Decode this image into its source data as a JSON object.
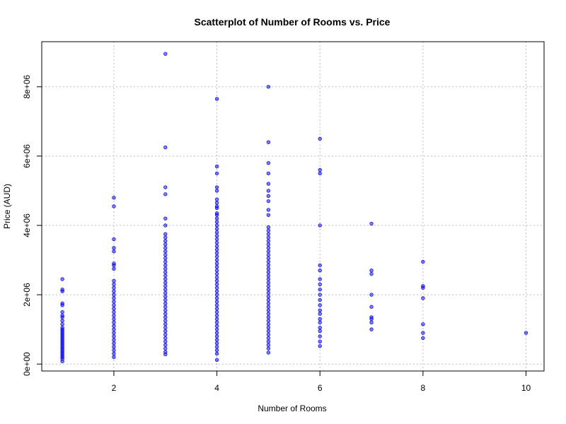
{
  "chart_data": {
    "type": "scatter",
    "title": "Scatterplot of Number of Rooms vs. Price",
    "xlabel": "Number of Rooms",
    "ylabel": "Price (AUD)",
    "xlim": [
      0.6,
      10.35
    ],
    "ylim": [
      -200000,
      9300000
    ],
    "x_ticks": [
      2,
      4,
      6,
      8,
      10
    ],
    "x_tick_labels": [
      "2",
      "4",
      "6",
      "8",
      "10"
    ],
    "y_ticks": [
      0,
      2000000,
      4000000,
      6000000,
      8000000
    ],
    "y_tick_labels": [
      "0e+00",
      "2e+06",
      "4e+06",
      "6e+06",
      "8e+06"
    ],
    "grid": true,
    "point_color": "#0000ff",
    "points": [
      [
        1,
        80000
      ],
      [
        1,
        150000
      ],
      [
        1,
        200000
      ],
      [
        1,
        250000
      ],
      [
        1,
        300000
      ],
      [
        1,
        350000
      ],
      [
        1,
        400000
      ],
      [
        1,
        450000
      ],
      [
        1,
        500000
      ],
      [
        1,
        550000
      ],
      [
        1,
        600000
      ],
      [
        1,
        650000
      ],
      [
        1,
        700000
      ],
      [
        1,
        750000
      ],
      [
        1,
        800000
      ],
      [
        1,
        850000
      ],
      [
        1,
        900000
      ],
      [
        1,
        950000
      ],
      [
        1,
        1000000
      ],
      [
        1,
        1050000
      ],
      [
        1,
        1150000
      ],
      [
        1,
        1250000
      ],
      [
        1,
        1350000
      ],
      [
        1,
        1400000
      ],
      [
        1,
        1500000
      ],
      [
        1,
        1700000
      ],
      [
        1,
        1750000
      ],
      [
        1,
        2100000
      ],
      [
        1,
        2150000
      ],
      [
        1,
        2450000
      ],
      [
        2,
        200000
      ],
      [
        2,
        300000
      ],
      [
        2,
        400000
      ],
      [
        2,
        500000
      ],
      [
        2,
        600000
      ],
      [
        2,
        700000
      ],
      [
        2,
        800000
      ],
      [
        2,
        900000
      ],
      [
        2,
        1000000
      ],
      [
        2,
        1100000
      ],
      [
        2,
        1200000
      ],
      [
        2,
        1300000
      ],
      [
        2,
        1400000
      ],
      [
        2,
        1500000
      ],
      [
        2,
        1600000
      ],
      [
        2,
        1700000
      ],
      [
        2,
        1800000
      ],
      [
        2,
        1900000
      ],
      [
        2,
        2000000
      ],
      [
        2,
        2100000
      ],
      [
        2,
        2200000
      ],
      [
        2,
        2300000
      ],
      [
        2,
        2400000
      ],
      [
        2,
        2750000
      ],
      [
        2,
        2850000
      ],
      [
        2,
        2900000
      ],
      [
        2,
        3250000
      ],
      [
        2,
        3350000
      ],
      [
        2,
        3600000
      ],
      [
        2,
        4550000
      ],
      [
        2,
        4800000
      ],
      [
        3,
        280000
      ],
      [
        3,
        350000
      ],
      [
        3,
        450000
      ],
      [
        3,
        550000
      ],
      [
        3,
        650000
      ],
      [
        3,
        750000
      ],
      [
        3,
        850000
      ],
      [
        3,
        950000
      ],
      [
        3,
        1050000
      ],
      [
        3,
        1150000
      ],
      [
        3,
        1250000
      ],
      [
        3,
        1350000
      ],
      [
        3,
        1450000
      ],
      [
        3,
        1550000
      ],
      [
        3,
        1650000
      ],
      [
        3,
        1750000
      ],
      [
        3,
        1850000
      ],
      [
        3,
        1950000
      ],
      [
        3,
        2050000
      ],
      [
        3,
        2150000
      ],
      [
        3,
        2250000
      ],
      [
        3,
        2350000
      ],
      [
        3,
        2450000
      ],
      [
        3,
        2550000
      ],
      [
        3,
        2650000
      ],
      [
        3,
        2750000
      ],
      [
        3,
        2850000
      ],
      [
        3,
        2950000
      ],
      [
        3,
        3050000
      ],
      [
        3,
        3150000
      ],
      [
        3,
        3250000
      ],
      [
        3,
        3350000
      ],
      [
        3,
        3450000
      ],
      [
        3,
        3550000
      ],
      [
        3,
        3650000
      ],
      [
        3,
        3750000
      ],
      [
        3,
        4000000
      ],
      [
        3,
        4200000
      ],
      [
        3,
        4900000
      ],
      [
        3,
        5100000
      ],
      [
        3,
        6250000
      ],
      [
        3,
        8950000
      ],
      [
        4,
        120000
      ],
      [
        4,
        300000
      ],
      [
        4,
        400000
      ],
      [
        4,
        500000
      ],
      [
        4,
        600000
      ],
      [
        4,
        700000
      ],
      [
        4,
        800000
      ],
      [
        4,
        900000
      ],
      [
        4,
        1000000
      ],
      [
        4,
        1100000
      ],
      [
        4,
        1200000
      ],
      [
        4,
        1300000
      ],
      [
        4,
        1400000
      ],
      [
        4,
        1500000
      ],
      [
        4,
        1600000
      ],
      [
        4,
        1700000
      ],
      [
        4,
        1800000
      ],
      [
        4,
        1900000
      ],
      [
        4,
        2000000
      ],
      [
        4,
        2100000
      ],
      [
        4,
        2200000
      ],
      [
        4,
        2300000
      ],
      [
        4,
        2400000
      ],
      [
        4,
        2500000
      ],
      [
        4,
        2600000
      ],
      [
        4,
        2700000
      ],
      [
        4,
        2800000
      ],
      [
        4,
        2900000
      ],
      [
        4,
        3000000
      ],
      [
        4,
        3100000
      ],
      [
        4,
        3200000
      ],
      [
        4,
        3300000
      ],
      [
        4,
        3400000
      ],
      [
        4,
        3500000
      ],
      [
        4,
        3600000
      ],
      [
        4,
        3700000
      ],
      [
        4,
        3800000
      ],
      [
        4,
        3900000
      ],
      [
        4,
        4000000
      ],
      [
        4,
        4100000
      ],
      [
        4,
        4200000
      ],
      [
        4,
        4300000
      ],
      [
        4,
        4350000
      ],
      [
        4,
        4500000
      ],
      [
        4,
        4550000
      ],
      [
        4,
        4650000
      ],
      [
        4,
        4750000
      ],
      [
        4,
        5000000
      ],
      [
        4,
        5100000
      ],
      [
        4,
        5500000
      ],
      [
        4,
        5700000
      ],
      [
        4,
        7650000
      ],
      [
        5,
        330000
      ],
      [
        5,
        450000
      ],
      [
        5,
        550000
      ],
      [
        5,
        650000
      ],
      [
        5,
        750000
      ],
      [
        5,
        850000
      ],
      [
        5,
        950000
      ],
      [
        5,
        1050000
      ],
      [
        5,
        1150000
      ],
      [
        5,
        1250000
      ],
      [
        5,
        1350000
      ],
      [
        5,
        1450000
      ],
      [
        5,
        1550000
      ],
      [
        5,
        1650000
      ],
      [
        5,
        1750000
      ],
      [
        5,
        1850000
      ],
      [
        5,
        1950000
      ],
      [
        5,
        2050000
      ],
      [
        5,
        2150000
      ],
      [
        5,
        2250000
      ],
      [
        5,
        2350000
      ],
      [
        5,
        2450000
      ],
      [
        5,
        2550000
      ],
      [
        5,
        2650000
      ],
      [
        5,
        2750000
      ],
      [
        5,
        2850000
      ],
      [
        5,
        2950000
      ],
      [
        5,
        3050000
      ],
      [
        5,
        3150000
      ],
      [
        5,
        3250000
      ],
      [
        5,
        3350000
      ],
      [
        5,
        3450000
      ],
      [
        5,
        3550000
      ],
      [
        5,
        3650000
      ],
      [
        5,
        3750000
      ],
      [
        5,
        3850000
      ],
      [
        5,
        3950000
      ],
      [
        5,
        4300000
      ],
      [
        5,
        4450000
      ],
      [
        5,
        4700000
      ],
      [
        5,
        4850000
      ],
      [
        5,
        5000000
      ],
      [
        5,
        5200000
      ],
      [
        5,
        5500000
      ],
      [
        5,
        5800000
      ],
      [
        5,
        6400000
      ],
      [
        5,
        8000000
      ],
      [
        6,
        520000
      ],
      [
        6,
        650000
      ],
      [
        6,
        800000
      ],
      [
        6,
        950000
      ],
      [
        6,
        1050000
      ],
      [
        6,
        1200000
      ],
      [
        6,
        1300000
      ],
      [
        6,
        1450000
      ],
      [
        6,
        1550000
      ],
      [
        6,
        1700000
      ],
      [
        6,
        1850000
      ],
      [
        6,
        2000000
      ],
      [
        6,
        2150000
      ],
      [
        6,
        2300000
      ],
      [
        6,
        2450000
      ],
      [
        6,
        2700000
      ],
      [
        6,
        2850000
      ],
      [
        6,
        4000000
      ],
      [
        6,
        5500000
      ],
      [
        6,
        5600000
      ],
      [
        6,
        6500000
      ],
      [
        7,
        1000000
      ],
      [
        7,
        1200000
      ],
      [
        7,
        1300000
      ],
      [
        7,
        1350000
      ],
      [
        7,
        1650000
      ],
      [
        7,
        2000000
      ],
      [
        7,
        2600000
      ],
      [
        7,
        2700000
      ],
      [
        7,
        4050000
      ],
      [
        8,
        750000
      ],
      [
        8,
        900000
      ],
      [
        8,
        1150000
      ],
      [
        8,
        1900000
      ],
      [
        8,
        2200000
      ],
      [
        8,
        2250000
      ],
      [
        8,
        2950000
      ],
      [
        10,
        900000
      ]
    ]
  }
}
